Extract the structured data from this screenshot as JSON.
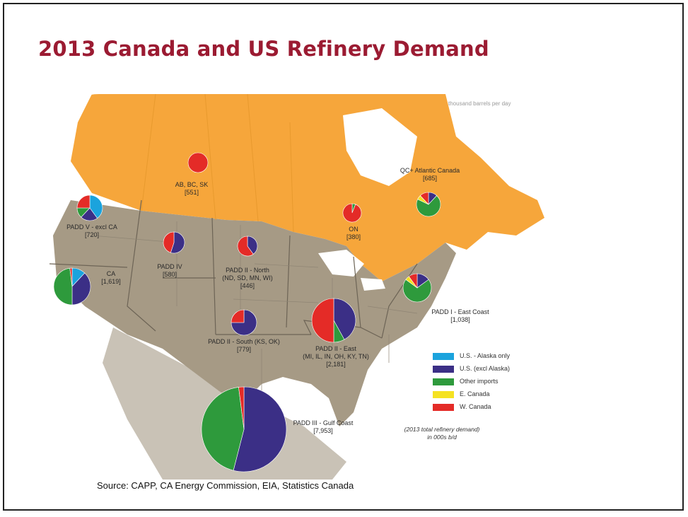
{
  "slide": {
    "title": "2013 Canada and US Refinery Demand",
    "unit_note": "thousand barrels per day",
    "source": "Source: CAPP, CA Energy Commission, EIA, Statistics Canada",
    "note_line1": "(2013 total refinery demand)",
    "note_line2": "in 000s b/d"
  },
  "colors": {
    "alaska": "#1ba3dd",
    "us_excl_alaska": "#3b2f86",
    "other_imports": "#2e9a3c",
    "e_canada": "#f5e222",
    "w_canada": "#e42b27",
    "canada_land": "#f6a63b",
    "us_land": "#a69a85",
    "mexico_land": "#c9c2b6",
    "title": "#9b1b32"
  },
  "legend": [
    {
      "key": "alaska",
      "label": "U.S. - Alaska only"
    },
    {
      "key": "us_excl_alaska",
      "label": "U.S. (excl Alaska)"
    },
    {
      "key": "other_imports",
      "label": "Other imports"
    },
    {
      "key": "e_canada",
      "label": "E. Canada"
    },
    {
      "key": "w_canada",
      "label": "W. Canada"
    }
  ],
  "regions": [
    {
      "id": "ab-bc-sk",
      "name": "AB, BC, SK",
      "value": "[551]",
      "shares": {
        "alaska": 0,
        "us_excl_alaska": 0,
        "other_imports": 0,
        "e_canada": 0,
        "w_canada": 1.0
      }
    },
    {
      "id": "on",
      "name": "ON",
      "value": "[380]",
      "shares": {
        "alaska": 0,
        "us_excl_alaska": 0,
        "other_imports": 0.06,
        "e_canada": 0,
        "w_canada": 0.94
      }
    },
    {
      "id": "qc-atlantic",
      "name": "QC+ Atlantic Canada",
      "value": "[685]",
      "shares": {
        "alaska": 0,
        "us_excl_alaska": 0.12,
        "other_imports": 0.7,
        "e_canada": 0.06,
        "w_canada": 0.12
      }
    },
    {
      "id": "padd-v",
      "name": "PADD V - excl CA",
      "value": "[720]",
      "shares": {
        "alaska": 0.4,
        "us_excl_alaska": 0.22,
        "other_imports": 0.13,
        "e_canada": 0,
        "w_canada": 0.25
      }
    },
    {
      "id": "ca",
      "name": "CA",
      "value": "[1,619]",
      "shares": {
        "alaska": 0.12,
        "us_excl_alaska": 0.38,
        "other_imports": 0.48,
        "e_canada": 0,
        "w_canada": 0.02
      }
    },
    {
      "id": "padd-iv",
      "name": "PADD IV",
      "value": "[580]",
      "shares": {
        "alaska": 0,
        "us_excl_alaska": 0.55,
        "other_imports": 0,
        "e_canada": 0,
        "w_canada": 0.45
      }
    },
    {
      "id": "padd-ii-north",
      "name": "PADD II - North",
      "value": "[446]",
      "detail": "(ND, SD, MN, WI)",
      "shares": {
        "alaska": 0,
        "us_excl_alaska": 0.4,
        "other_imports": 0,
        "e_canada": 0,
        "w_canada": 0.6
      }
    },
    {
      "id": "padd-ii-south",
      "name": "PADD II - South (KS, OK)",
      "value": "[779]",
      "shares": {
        "alaska": 0,
        "us_excl_alaska": 0.75,
        "other_imports": 0,
        "e_canada": 0,
        "w_canada": 0.25
      }
    },
    {
      "id": "padd-ii-east",
      "name": "PADD II - East",
      "value": "[2,181]",
      "detail": "(MI, IL, IN, OH, KY, TN)",
      "shares": {
        "alaska": 0,
        "us_excl_alaska": 0.42,
        "other_imports": 0.08,
        "e_canada": 0,
        "w_canada": 0.5
      }
    },
    {
      "id": "padd-i",
      "name": "PADD I - East Coast",
      "value": "[1,038]",
      "shares": {
        "alaska": 0,
        "us_excl_alaska": 0.15,
        "other_imports": 0.7,
        "e_canada": 0.05,
        "w_canada": 0.1
      }
    },
    {
      "id": "padd-iii",
      "name": "PADD III - Gulf Coast",
      "value": "[7,953]",
      "shares": {
        "alaska": 0,
        "us_excl_alaska": 0.54,
        "other_imports": 0.44,
        "e_canada": 0,
        "w_canada": 0.02
      }
    }
  ]
}
